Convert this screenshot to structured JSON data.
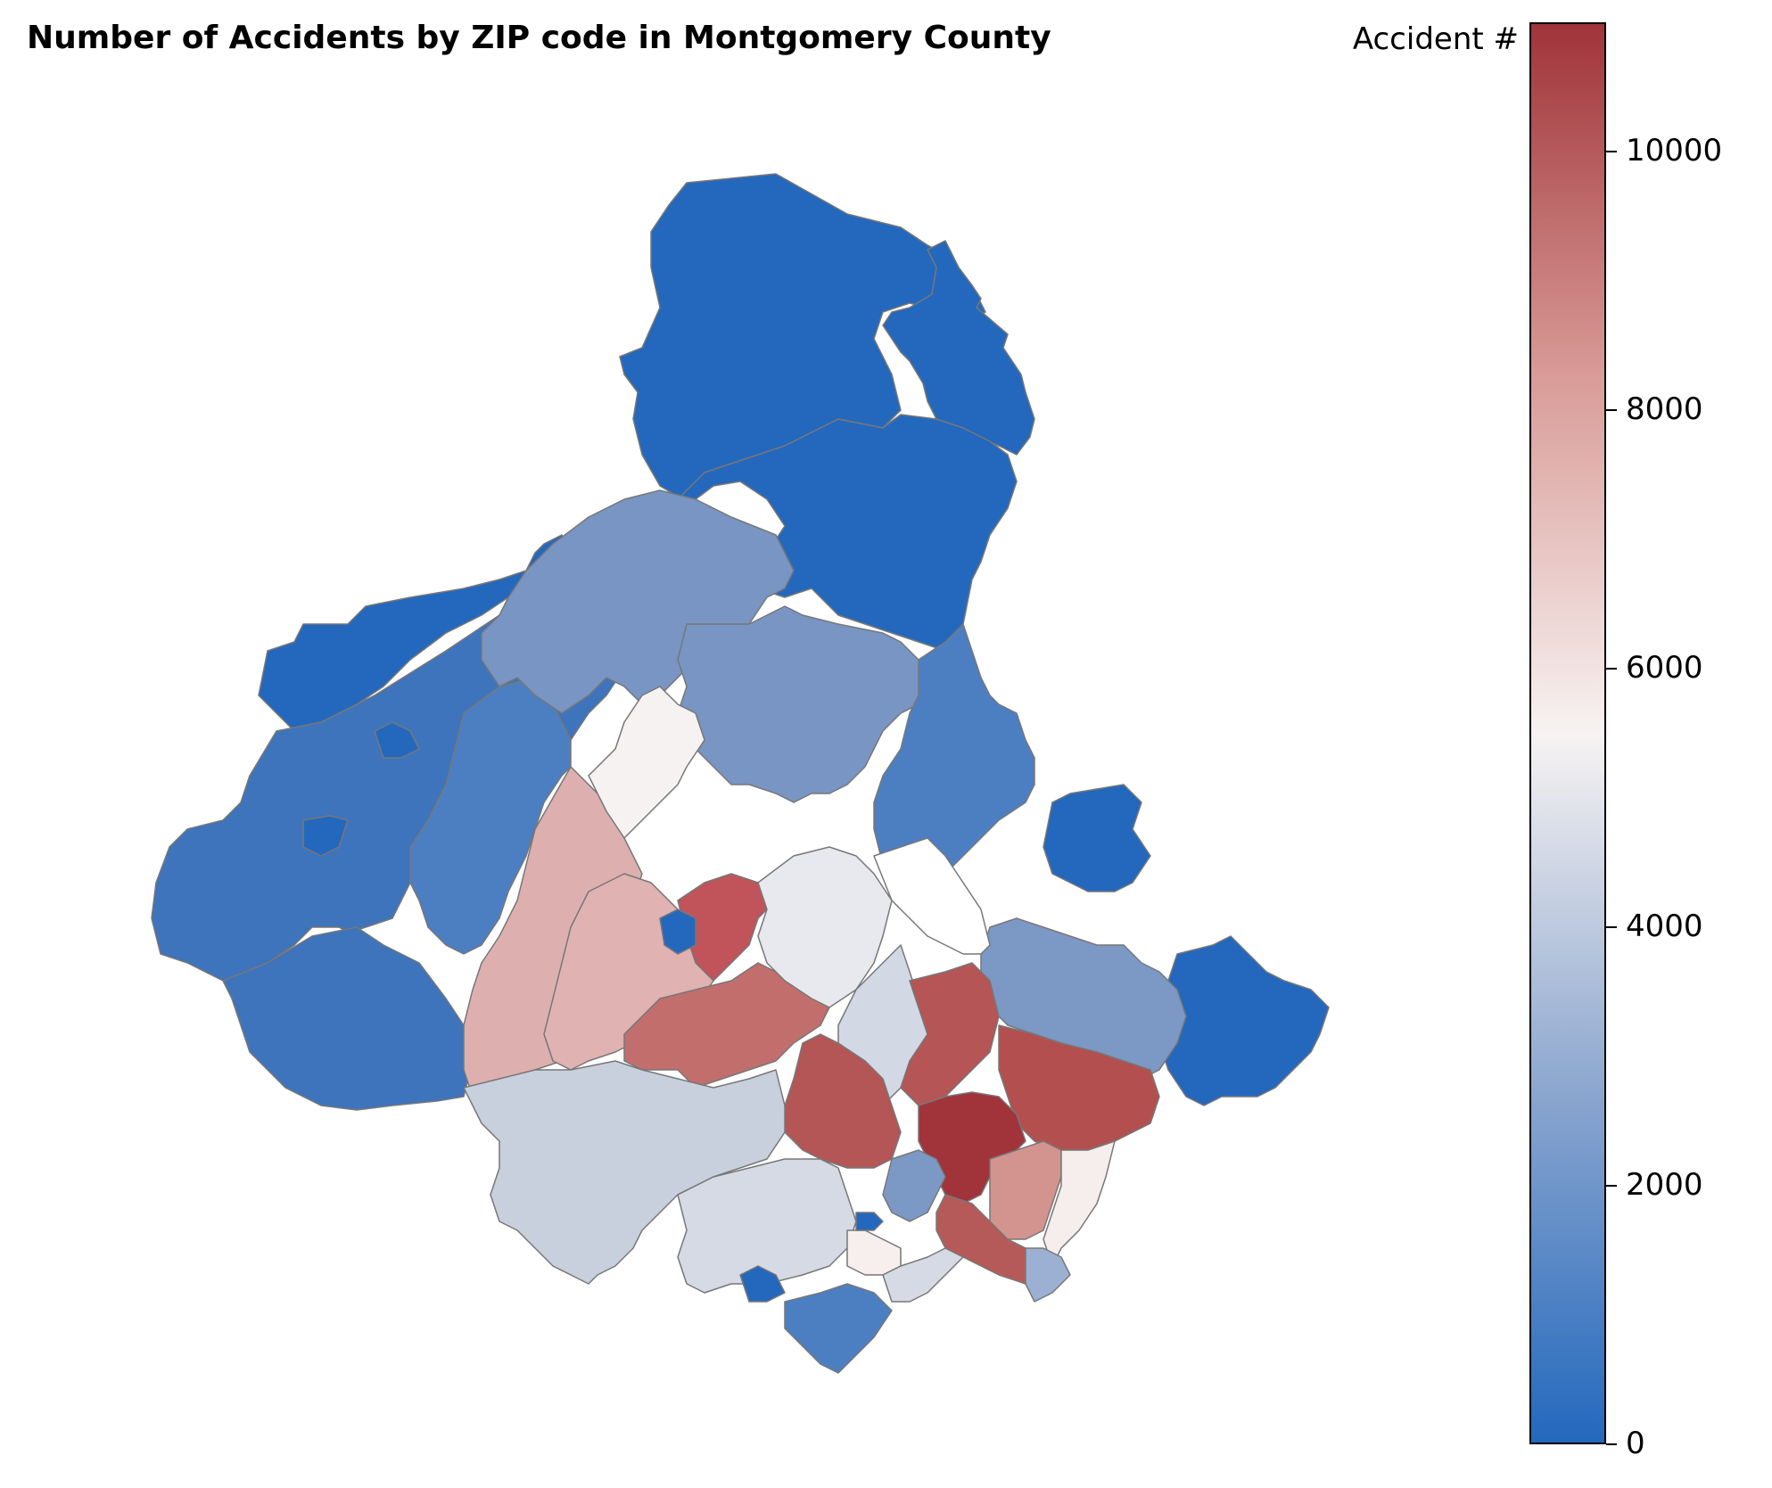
{
  "title": "Number of Accidents by ZIP code in Montgomery County",
  "colorbar": {
    "label": "Accident #",
    "min": 0,
    "max": 11000,
    "ticks": [
      "0",
      "2000",
      "4000",
      "6000",
      "8000",
      "10000"
    ],
    "tick_values": [
      0,
      2000,
      4000,
      6000,
      8000,
      10000
    ],
    "colors": [
      "#2368bd",
      "#8da7cf",
      "#f7f3f2",
      "#d99c98",
      "#a0343a"
    ]
  },
  "chart_data": {
    "type": "heatmap",
    "title": "Number of Accidents by ZIP code in Montgomery County",
    "colorbar_label": "Accident #",
    "value_range": [
      0,
      11000
    ],
    "regions_approx_values": [
      0,
      100,
      800,
      900,
      1800,
      2400,
      3800,
      4400,
      5000,
      5800,
      7300,
      7600,
      8400,
      9800,
      10200,
      10900
    ]
  }
}
